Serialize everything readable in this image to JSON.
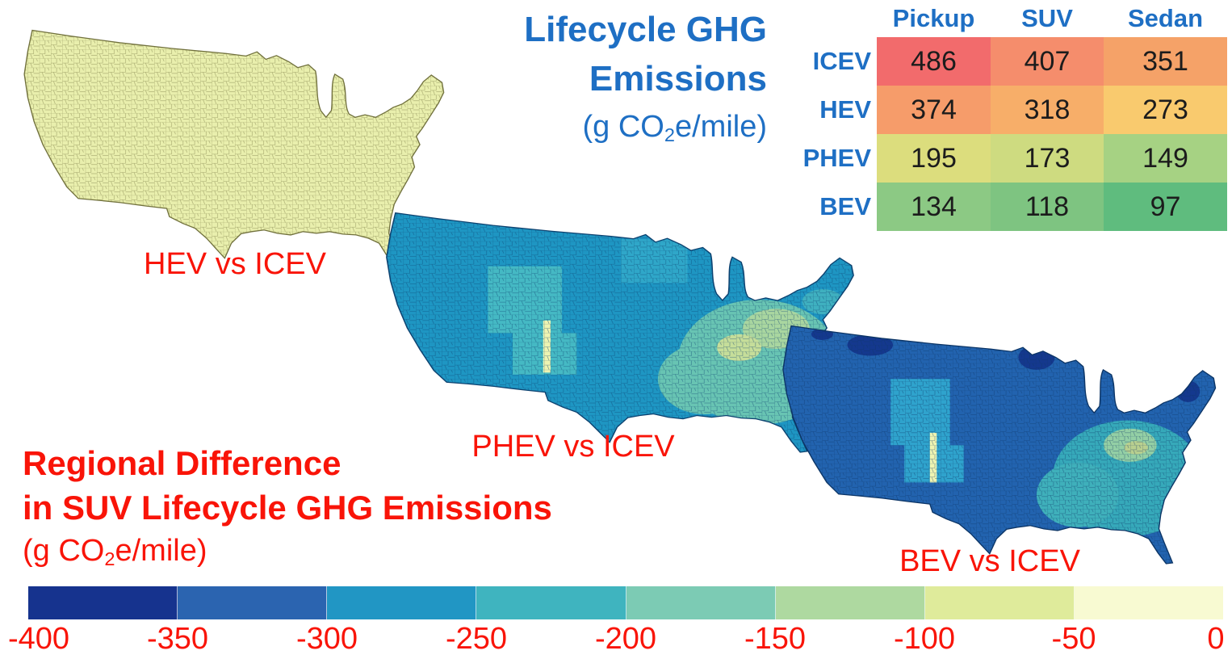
{
  "figure": {
    "title": {
      "line1": "Lifecycle GHG",
      "line2": "Emissions",
      "unit_prefix": "(g CO",
      "unit_sub": "2",
      "unit_suffix": "e/mile)"
    },
    "subtitle": {
      "line1": "Regional Difference",
      "line2": "in SUV Lifecycle GHG Emissions",
      "unit_prefix": "(g CO",
      "unit_sub": "2",
      "unit_suffix": "e/mile)"
    },
    "colors": {
      "accent_blue": "#1e6fc4",
      "accent_red": "#f91408",
      "value_text": "#1c1c1c"
    }
  },
  "chart_data": [
    {
      "type": "table",
      "title": "Lifecycle GHG Emissions (g CO2e/mile)",
      "columns": [
        "Pickup",
        "SUV",
        "Sedan"
      ],
      "rows": [
        "ICEV",
        "HEV",
        "PHEV",
        "BEV"
      ],
      "values": [
        [
          486,
          407,
          351
        ],
        [
          374,
          318,
          273
        ],
        [
          195,
          173,
          149
        ],
        [
          134,
          118,
          97
        ]
      ],
      "cell_colors": [
        [
          "#f26b6c",
          "#f58d6c",
          "#f5a268"
        ],
        [
          "#f69c6a",
          "#f7ae69",
          "#f9ca6e"
        ],
        [
          "#dcdd7d",
          "#cedb80",
          "#a6d283"
        ],
        [
          "#8cc984",
          "#7ec481",
          "#5fbc7e"
        ]
      ]
    },
    {
      "type": "heatmap",
      "title": "Regional Difference in SUV Lifecycle GHG Emissions (g CO2e/mile)",
      "maps": [
        {
          "label": "HEV vs ICEV",
          "base_color": "#e9efad",
          "county_line_color": "#71713d",
          "approx_range_g_per_mile": [
            -100,
            0
          ]
        },
        {
          "label": "PHEV vs ICEV",
          "base_color": "#1e96c3",
          "county_line_color": "#0d4270",
          "approx_range_g_per_mile": [
            -300,
            -100
          ],
          "patch_colors": {
            "plains_cyan": "#2fa7c9",
            "light_teal": "#45b9c4",
            "pale_yellow": "#eef4b2",
            "teal_green": "#68c4b3",
            "light_green": "#a9d6a0",
            "pale_green": "#c6de9a",
            "ne_teal": "#3fb0c0"
          }
        },
        {
          "label": "BEV vs ICEV",
          "base_color": "#2263af",
          "county_line_color": "#0c3566",
          "approx_range_g_per_mile": [
            -400,
            -150
          ],
          "patch_colors": {
            "dark_navy": "#14388e",
            "cyan": "#2fa3cd",
            "pale_yellow": "#eef4b2",
            "teal": "#36a9ba",
            "teal2": "#3fb0bb",
            "light_green": "#93cfa5",
            "olive": "#b8cf8f"
          }
        }
      ],
      "colorbar": {
        "ticks": [
          "-400",
          "-350",
          "-300",
          "-250",
          "-200",
          "-150",
          "-100",
          "-50",
          "0"
        ],
        "segment_colors": [
          "#16338e",
          "#2b64b0",
          "#2196c4",
          "#3fb4bf",
          "#7ccbb4",
          "#aed9a0",
          "#dfeb9b",
          "#f8fad2"
        ]
      }
    }
  ]
}
